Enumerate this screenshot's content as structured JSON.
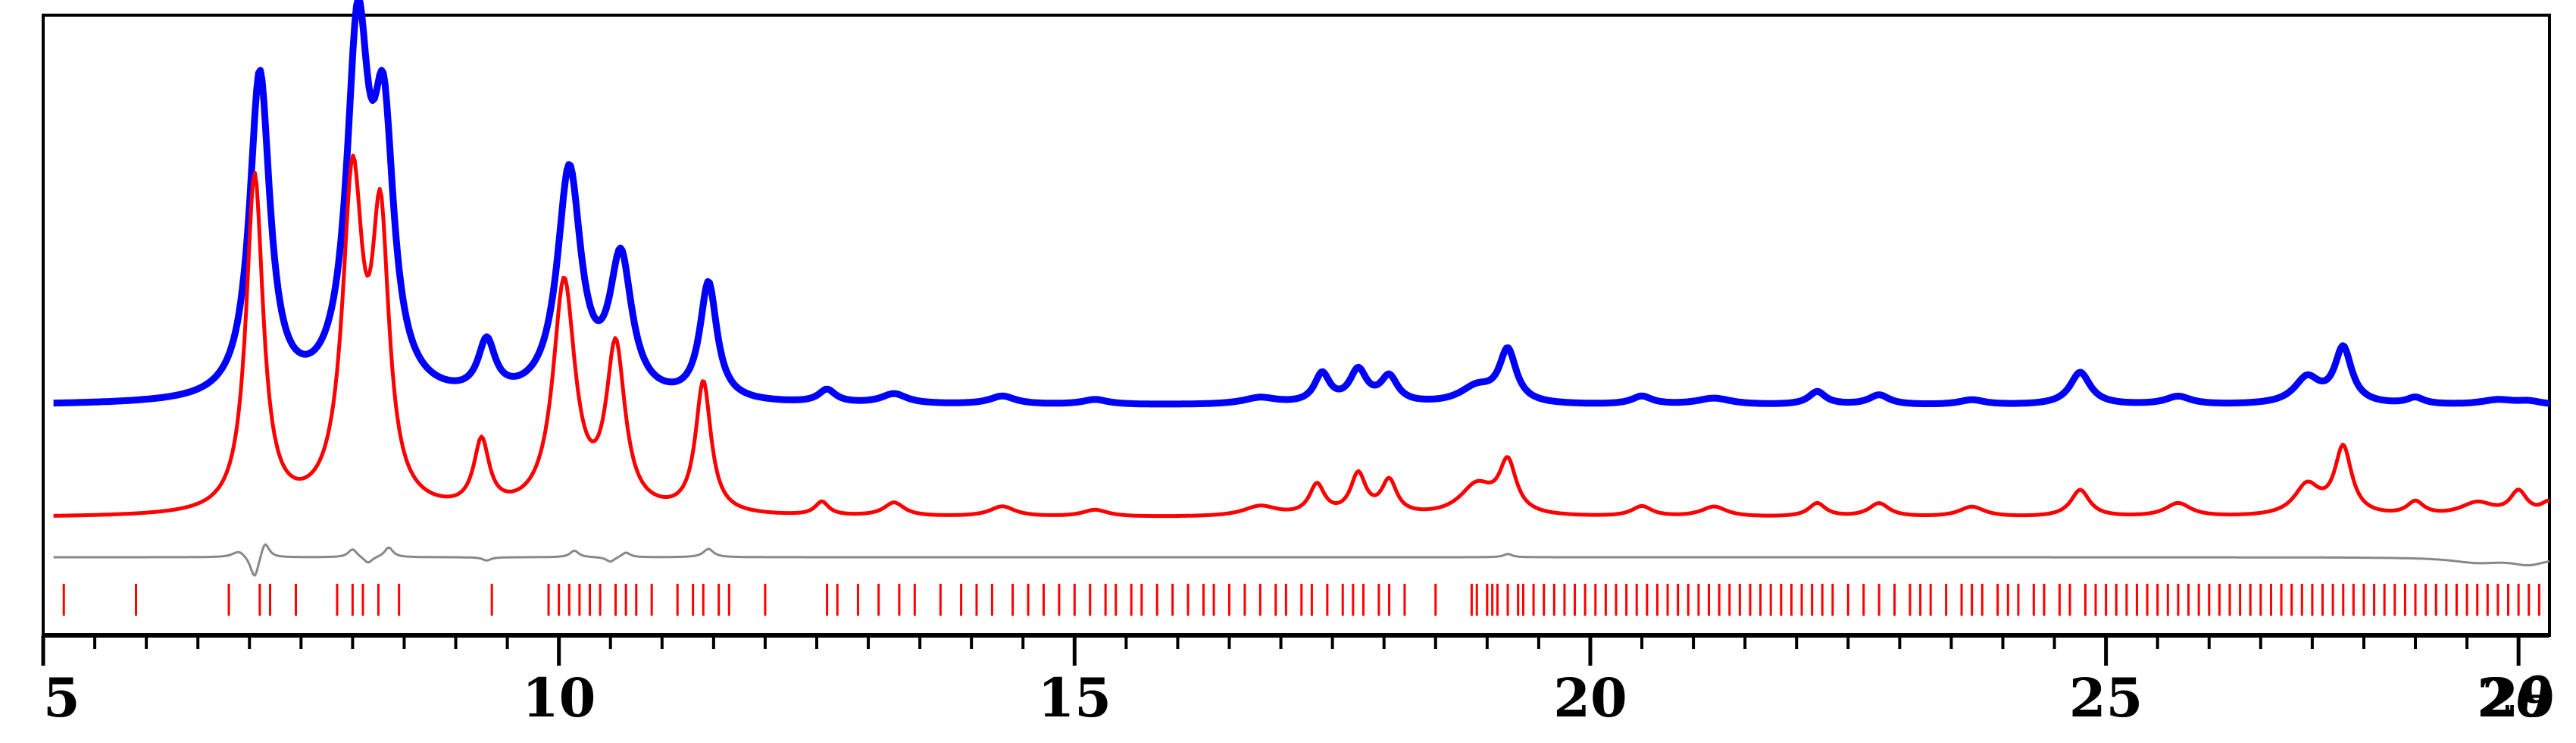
{
  "chart_data": {
    "type": "line",
    "title": "",
    "xlabel": "2θ",
    "xlabel_number": "2",
    "xlabel_symbol": "θ",
    "ylabel": "",
    "xlim": [
      5,
      29.3
    ],
    "xticks": [
      5,
      10,
      15,
      20,
      25,
      29
    ],
    "xtick_labels": [
      "5",
      "10",
      "15",
      "20",
      "25",
      "29"
    ],
    "minor_tick_step": 0.5,
    "grid": false,
    "legend": "none",
    "colors": {
      "observed": "#0000ff",
      "calculated": "#ff0000",
      "difference": "#888888",
      "reflections": "#ff0000",
      "axis": "#000000"
    },
    "series": [
      {
        "role": "observed",
        "peaks": [
          [
            7.1,
            100,
            0.12
          ],
          [
            8.05,
            108,
            0.13
          ],
          [
            8.3,
            77,
            0.12
          ],
          [
            9.3,
            16,
            0.1
          ],
          [
            10.1,
            70,
            0.14
          ],
          [
            10.6,
            42,
            0.13
          ],
          [
            11.45,
            36,
            0.1
          ],
          [
            12.6,
            4,
            0.1
          ],
          [
            13.25,
            3,
            0.15
          ],
          [
            14.3,
            2.5,
            0.15
          ],
          [
            15.2,
            1.5,
            0.15
          ],
          [
            16.8,
            2,
            0.2
          ],
          [
            17.4,
            9,
            0.09
          ],
          [
            17.75,
            10,
            0.1
          ],
          [
            18.05,
            8,
            0.1
          ],
          [
            18.9,
            5,
            0.2
          ],
          [
            19.2,
            16,
            0.1
          ],
          [
            20.5,
            2.5,
            0.12
          ],
          [
            21.2,
            2,
            0.2
          ],
          [
            22.2,
            4,
            0.1
          ],
          [
            22.8,
            3,
            0.12
          ],
          [
            23.7,
            1.5,
            0.15
          ],
          [
            24.75,
            10,
            0.12
          ],
          [
            25.7,
            2.5,
            0.15
          ],
          [
            26.95,
            8,
            0.15
          ],
          [
            27.3,
            17,
            0.1
          ],
          [
            28,
            2,
            0.1
          ],
          [
            28.8,
            1.5,
            0.2
          ],
          [
            29.1,
            1,
            0.15
          ]
        ],
        "baseline": 0
      },
      {
        "role": "calculated",
        "peaks": [
          [
            7.05,
            100,
            0.1
          ],
          [
            8.0,
            96,
            0.12
          ],
          [
            8.27,
            80,
            0.1
          ],
          [
            9.25,
            20,
            0.09
          ],
          [
            10.05,
            68,
            0.13
          ],
          [
            10.55,
            48,
            0.11
          ],
          [
            11.4,
            39,
            0.09
          ],
          [
            12.55,
            4,
            0.08
          ],
          [
            13.25,
            4,
            0.12
          ],
          [
            14.3,
            3,
            0.15
          ],
          [
            15.2,
            2,
            0.15
          ],
          [
            16.8,
            3,
            0.2
          ],
          [
            17.35,
            9,
            0.09
          ],
          [
            17.75,
            12,
            0.09
          ],
          [
            18.05,
            10,
            0.09
          ],
          [
            18.9,
            9,
            0.2
          ],
          [
            19.2,
            15,
            0.1
          ],
          [
            20.5,
            3,
            0.12
          ],
          [
            21.2,
            3,
            0.15
          ],
          [
            22.2,
            4,
            0.1
          ],
          [
            22.8,
            4,
            0.12
          ],
          [
            23.7,
            3,
            0.15
          ],
          [
            24.75,
            8,
            0.11
          ],
          [
            25.7,
            4,
            0.15
          ],
          [
            26.95,
            9,
            0.15
          ],
          [
            27.3,
            20,
            0.1
          ],
          [
            28,
            4,
            0.1
          ],
          [
            28.6,
            4,
            0.2
          ],
          [
            29.0,
            7,
            0.1
          ],
          [
            29.3,
            4,
            0.1
          ]
        ],
        "baseline": 0
      },
      {
        "role": "difference",
        "features": [
          [
            6.9,
            4,
            0.08
          ],
          [
            7.05,
            -14,
            0.05
          ],
          [
            7.15,
            10,
            0.05
          ],
          [
            8.0,
            5,
            0.05
          ],
          [
            8.15,
            -4,
            0.05
          ],
          [
            8.35,
            6,
            0.05
          ],
          [
            9.3,
            -2,
            0.05
          ],
          [
            10.15,
            4,
            0.05
          ],
          [
            10.5,
            -3,
            0.05
          ],
          [
            10.65,
            3,
            0.05
          ],
          [
            11.45,
            5,
            0.06
          ],
          [
            19.2,
            2,
            0.05
          ],
          [
            28.6,
            -3,
            0.3
          ],
          [
            29.1,
            -4,
            0.2
          ]
        ]
      }
    ],
    "reflection_positions": [
      5.2,
      5.9,
      6.8,
      7.1,
      7.2,
      7.45,
      7.85,
      8.0,
      8.1,
      8.25,
      8.45,
      9.35,
      9.9,
      10.0,
      10.1,
      10.2,
      10.3,
      10.4,
      10.55,
      10.65,
      10.75,
      10.9,
      11.15,
      11.3,
      11.4,
      11.55,
      11.65,
      12.0,
      12.6,
      12.7,
      12.9,
      13.1,
      13.3,
      13.45,
      13.7,
      13.9,
      14.05,
      14.2,
      14.4,
      14.55,
      14.7,
      14.85,
      15.0,
      15.15,
      15.3,
      15.4,
      15.55,
      15.65,
      15.8,
      15.95,
      16.1,
      16.25,
      16.35,
      16.5,
      16.65,
      16.8,
      16.95,
      17.05,
      17.2,
      17.3,
      17.45,
      17.6,
      17.7,
      17.8,
      17.95,
      18.05,
      18.2,
      18.5,
      18.85,
      18.9,
      19.0,
      19.05,
      19.1,
      19.2,
      19.3,
      19.35,
      19.45,
      19.55,
      19.65,
      19.75,
      19.85,
      19.95,
      20.05,
      20.15,
      20.25,
      20.35,
      20.45,
      20.55,
      20.65,
      20.75,
      20.85,
      20.95,
      21.05,
      21.15,
      21.25,
      21.35,
      21.45,
      21.55,
      21.65,
      21.75,
      21.85,
      21.95,
      22.05,
      22.15,
      22.25,
      22.35,
      22.5,
      22.65,
      22.8,
      22.95,
      23.1,
      23.2,
      23.3,
      23.45,
      23.6,
      23.7,
      23.8,
      23.95,
      24.05,
      24.15,
      24.3,
      24.4,
      24.55,
      24.65,
      24.8,
      24.9,
      25.0,
      25.1,
      25.2,
      25.3,
      25.4,
      25.5,
      25.6,
      25.7,
      25.8,
      25.9,
      26.0,
      26.1,
      26.2,
      26.3,
      26.4,
      26.5,
      26.6,
      26.7,
      26.8,
      26.9,
      27.0,
      27.1,
      27.2,
      27.3,
      27.4,
      27.5,
      27.6,
      27.7,
      27.8,
      27.9,
      28.0,
      28.1,
      28.2,
      28.3,
      28.4,
      28.5,
      28.6,
      28.7,
      28.8,
      28.9,
      29.0,
      29.1,
      29.2
    ]
  }
}
